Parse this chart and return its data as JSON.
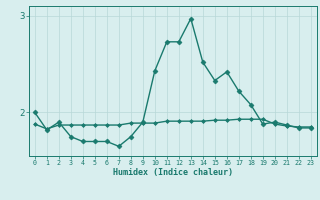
{
  "xlabel": "Humidex (Indice chaleur)",
  "x_values": [
    0,
    1,
    2,
    3,
    4,
    5,
    6,
    7,
    8,
    9,
    10,
    11,
    12,
    13,
    14,
    15,
    16,
    17,
    18,
    19,
    20,
    21,
    22,
    23
  ],
  "line1_y": [
    2.0,
    1.82,
    1.9,
    1.75,
    1.7,
    1.7,
    1.7,
    1.65,
    1.75,
    1.9,
    2.43,
    2.73,
    2.73,
    2.97,
    2.52,
    2.33,
    2.42,
    2.22,
    2.08,
    1.88,
    1.9,
    1.87,
    1.84,
    1.84
  ],
  "line2_y": [
    1.88,
    1.83,
    1.87,
    1.87,
    1.87,
    1.87,
    1.87,
    1.87,
    1.89,
    1.89,
    1.89,
    1.91,
    1.91,
    1.91,
    1.91,
    1.92,
    1.92,
    1.93,
    1.93,
    1.93,
    1.88,
    1.86,
    1.85,
    1.85
  ],
  "line_color": "#1a7a6e",
  "bg_color": "#d8eeee",
  "grid_color": "#b8d8d8",
  "yticks": [
    2,
    3
  ],
  "ylim": [
    1.55,
    3.1
  ],
  "xlim": [
    -0.5,
    23.5
  ]
}
